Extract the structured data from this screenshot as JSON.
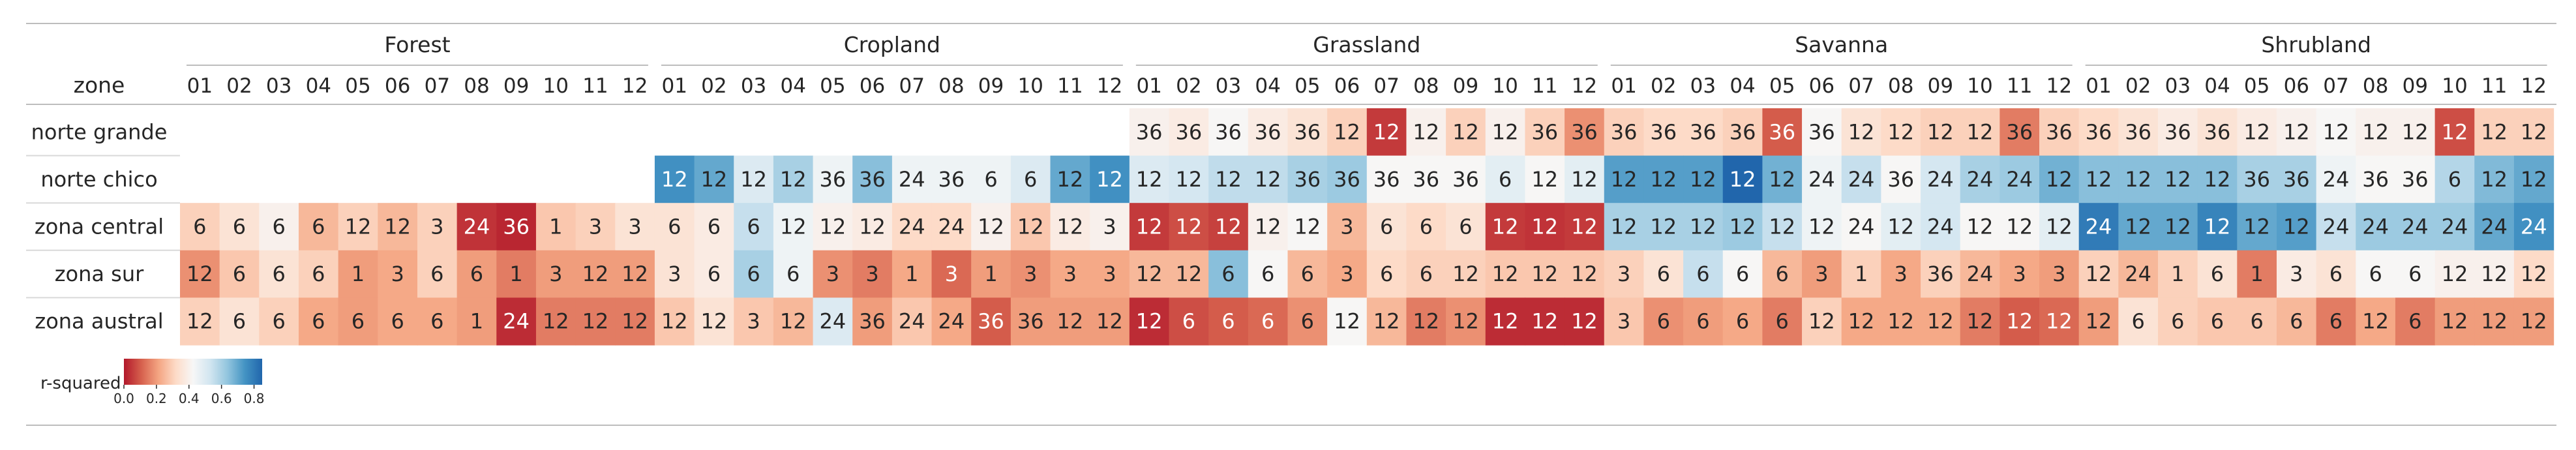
{
  "chart_data": {
    "type": "heatmap",
    "row_header": "zone",
    "groups": [
      "Forest",
      "Cropland",
      "Grassland",
      "Savanna",
      "Shrubland"
    ],
    "months": [
      "01",
      "02",
      "03",
      "04",
      "05",
      "06",
      "07",
      "08",
      "09",
      "10",
      "11",
      "12"
    ],
    "rows": [
      "norte grande",
      "norte chico",
      "zona central",
      "zona sur",
      "zona austral"
    ],
    "colorbar": {
      "label": "r-squared",
      "ticks": [
        "0.0",
        "0.2",
        "0.4",
        "0.6",
        "0.8"
      ],
      "tick_values": [
        0.0,
        0.2,
        0.4,
        0.6,
        0.8
      ],
      "range": [
        0.0,
        0.85
      ],
      "colormap": "RdBu"
    },
    "r_squared": [
      [
        [
          null,
          null,
          null,
          null,
          null,
          null,
          null,
          null,
          null,
          null,
          null,
          null
        ],
        [
          null,
          null,
          null,
          null,
          null,
          null,
          null,
          null,
          null,
          null,
          null,
          null
        ],
        [
          0.3,
          0.35,
          0.4,
          0.25,
          0.3,
          0.25,
          0.3,
          0.04,
          0.02,
          0.28,
          0.3,
          0.35
        ],
        [
          0.18,
          0.28,
          0.35,
          0.3,
          0.2,
          0.22,
          0.3,
          0.2,
          0.15,
          0.2,
          0.2,
          0.2
        ],
        [
          0.3,
          0.35,
          0.3,
          0.22,
          0.2,
          0.22,
          0.22,
          0.2,
          0.03,
          0.15,
          0.15,
          0.15
        ]
      ],
      [
        [
          null,
          null,
          null,
          null,
          null,
          null,
          null,
          null,
          null,
          null,
          null,
          null
        ],
        [
          0.75,
          0.7,
          0.5,
          0.6,
          0.45,
          0.65,
          0.45,
          0.45,
          0.45,
          0.5,
          0.7,
          0.75
        ],
        [
          0.35,
          0.38,
          0.55,
          0.45,
          0.4,
          0.38,
          0.32,
          0.32,
          0.4,
          0.28,
          0.38,
          0.4
        ],
        [
          0.35,
          0.38,
          0.6,
          0.45,
          0.18,
          0.15,
          0.22,
          0.12,
          0.2,
          0.18,
          0.22,
          0.22
        ],
        [
          0.28,
          0.35,
          0.28,
          0.25,
          0.5,
          0.2,
          0.28,
          0.22,
          0.1,
          0.2,
          0.2,
          0.2
        ]
      ],
      [
        [
          0.4,
          0.38,
          0.42,
          0.38,
          0.35,
          0.3,
          0.05,
          0.4,
          0.3,
          0.4,
          0.3,
          0.18
        ],
        [
          0.5,
          0.52,
          0.56,
          0.56,
          0.6,
          0.62,
          0.42,
          0.42,
          0.42,
          0.48,
          0.42,
          0.48
        ],
        [
          0.05,
          0.08,
          0.06,
          0.4,
          0.42,
          0.25,
          0.35,
          0.32,
          0.35,
          0.05,
          0.04,
          0.05
        ],
        [
          0.25,
          0.25,
          0.65,
          0.42,
          0.25,
          0.22,
          0.32,
          0.3,
          0.3,
          0.28,
          0.28,
          0.28
        ],
        [
          0.03,
          0.08,
          0.1,
          0.12,
          0.18,
          0.42,
          0.25,
          0.15,
          0.18,
          0.03,
          0.03,
          0.03
        ]
      ],
      [
        [
          0.3,
          0.32,
          0.32,
          0.3,
          0.1,
          0.42,
          0.35,
          0.32,
          0.3,
          0.3,
          0.15,
          0.3
        ],
        [
          0.72,
          0.72,
          0.72,
          0.85,
          0.68,
          0.45,
          0.55,
          0.42,
          0.52,
          0.6,
          0.62,
          0.68
        ],
        [
          0.6,
          0.6,
          0.6,
          0.62,
          0.55,
          0.45,
          0.42,
          0.48,
          0.52,
          0.42,
          0.42,
          0.48
        ],
        [
          0.3,
          0.35,
          0.55,
          0.42,
          0.25,
          0.2,
          0.3,
          0.22,
          0.3,
          0.25,
          0.22,
          0.2
        ],
        [
          0.28,
          0.18,
          0.2,
          0.22,
          0.15,
          0.3,
          0.22,
          0.22,
          0.22,
          0.15,
          0.1,
          0.12
        ]
      ],
      [
        [
          0.32,
          0.35,
          0.38,
          0.35,
          0.38,
          0.4,
          0.42,
          0.4,
          0.4,
          0.08,
          0.3,
          0.3
        ],
        [
          0.65,
          0.65,
          0.65,
          0.65,
          0.6,
          0.6,
          0.45,
          0.42,
          0.42,
          0.58,
          0.66,
          0.7
        ],
        [
          0.8,
          0.7,
          0.7,
          0.78,
          0.7,
          0.72,
          0.55,
          0.62,
          0.62,
          0.62,
          0.7,
          0.75
        ],
        [
          0.3,
          0.25,
          0.3,
          0.35,
          0.15,
          0.38,
          0.35,
          0.42,
          0.42,
          0.4,
          0.4,
          0.32
        ],
        [
          0.2,
          0.35,
          0.3,
          0.28,
          0.28,
          0.25,
          0.15,
          0.22,
          0.15,
          0.2,
          0.2,
          0.2
        ]
      ]
    ],
    "labels": [
      [
        [
          "",
          "",
          "",
          "",
          "",
          "",
          "",
          "",
          "",
          "",
          "",
          ""
        ],
        [
          "",
          "",
          "",
          "",
          "",
          "",
          "",
          "",
          "",
          "",
          "",
          ""
        ],
        [
          "6",
          "6",
          "6",
          "6",
          "12",
          "12",
          "3",
          "24",
          "36",
          "1",
          "3",
          "3"
        ],
        [
          "12",
          "6",
          "6",
          "6",
          "1",
          "3",
          "6",
          "6",
          "1",
          "3",
          "12",
          "12"
        ],
        [
          "12",
          "6",
          "6",
          "6",
          "6",
          "6",
          "6",
          "1",
          "24",
          "12",
          "12",
          "12"
        ]
      ],
      [
        [
          "",
          "",
          "",
          "",
          "",
          "",
          "",
          "",
          "",
          "",
          "",
          ""
        ],
        [
          "12",
          "12",
          "12",
          "12",
          "36",
          "36",
          "24",
          "36",
          "6",
          "6",
          "12",
          "12"
        ],
        [
          "6",
          "6",
          "6",
          "12",
          "12",
          "12",
          "24",
          "24",
          "12",
          "12",
          "12",
          "3"
        ],
        [
          "3",
          "6",
          "6",
          "6",
          "3",
          "3",
          "1",
          "3",
          "1",
          "3",
          "3",
          "3"
        ],
        [
          "12",
          "12",
          "3",
          "12",
          "24",
          "36",
          "24",
          "24",
          "36",
          "36",
          "12",
          "12"
        ]
      ],
      [
        [
          "36",
          "36",
          "36",
          "36",
          "36",
          "12",
          "12",
          "12",
          "12",
          "12",
          "36",
          "36"
        ],
        [
          "12",
          "12",
          "12",
          "12",
          "36",
          "36",
          "36",
          "36",
          "36",
          "6",
          "12",
          "12"
        ],
        [
          "12",
          "12",
          "12",
          "12",
          "12",
          "3",
          "6",
          "6",
          "6",
          "12",
          "12",
          "12"
        ],
        [
          "12",
          "12",
          "6",
          "6",
          "6",
          "3",
          "6",
          "6",
          "12",
          "12",
          "12",
          "12"
        ],
        [
          "12",
          "6",
          "6",
          "6",
          "6",
          "12",
          "12",
          "12",
          "12",
          "12",
          "12",
          "12"
        ]
      ],
      [
        [
          "36",
          "36",
          "36",
          "36",
          "36",
          "36",
          "12",
          "12",
          "12",
          "12",
          "36",
          "36"
        ],
        [
          "12",
          "12",
          "12",
          "12",
          "12",
          "24",
          "24",
          "36",
          "24",
          "24",
          "24",
          "12"
        ],
        [
          "12",
          "12",
          "12",
          "12",
          "12",
          "12",
          "24",
          "12",
          "24",
          "12",
          "12",
          "12"
        ],
        [
          "3",
          "6",
          "6",
          "6",
          "6",
          "3",
          "1",
          "3",
          "36",
          "24",
          "3",
          "3"
        ],
        [
          "3",
          "6",
          "6",
          "6",
          "6",
          "12",
          "12",
          "12",
          "12",
          "12",
          "12",
          "12"
        ]
      ],
      [
        [
          "36",
          "36",
          "36",
          "36",
          "12",
          "12",
          "12",
          "12",
          "12",
          "12",
          "12",
          "12"
        ],
        [
          "12",
          "12",
          "12",
          "12",
          "36",
          "36",
          "24",
          "36",
          "36",
          "6",
          "12",
          "12"
        ],
        [
          "24",
          "12",
          "12",
          "12",
          "12",
          "12",
          "24",
          "24",
          "24",
          "24",
          "24",
          "24"
        ],
        [
          "12",
          "24",
          "1",
          "6",
          "1",
          "3",
          "6",
          "6",
          "6",
          "12",
          "12",
          "12"
        ],
        [
          "12",
          "6",
          "6",
          "6",
          "6",
          "6",
          "6",
          "12",
          "6",
          "12",
          "12",
          "12"
        ]
      ]
    ]
  }
}
